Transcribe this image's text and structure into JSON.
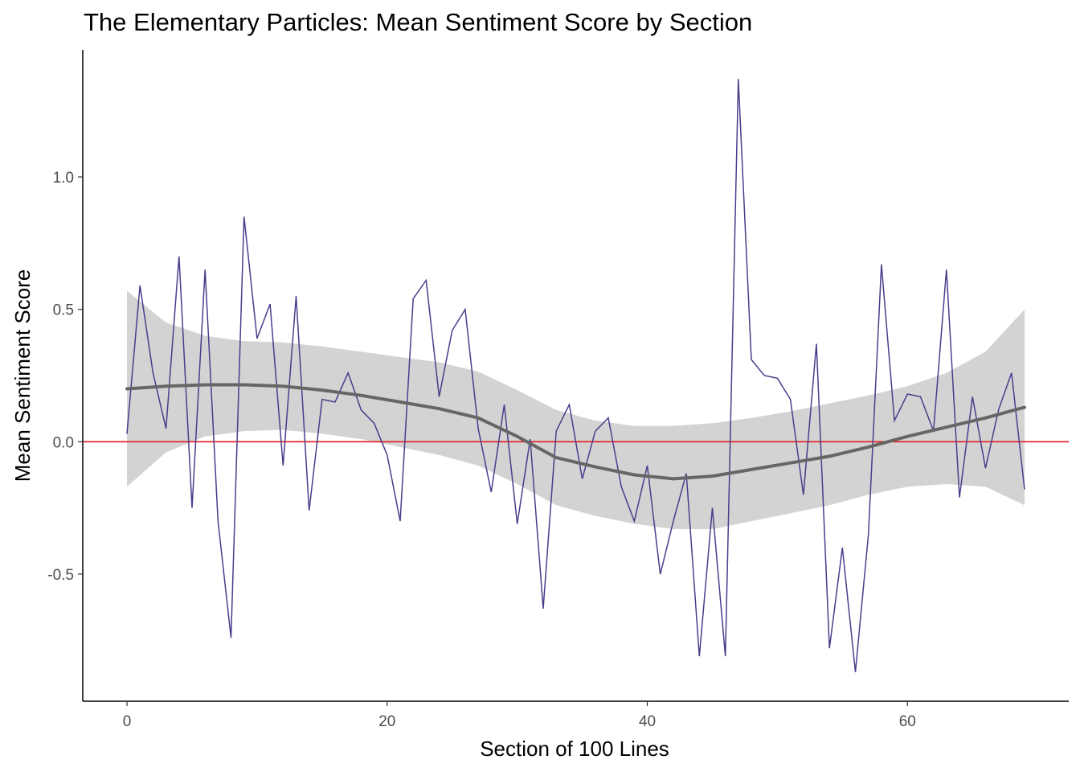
{
  "chart_data": {
    "type": "line",
    "title": "The Elementary Particles: Mean Sentiment Score by Section",
    "xlabel": "Section of 100 Lines",
    "ylabel": "Mean Sentiment Score",
    "xlim": [
      -3.4,
      72.4
    ],
    "ylim": [
      -0.98,
      1.48
    ],
    "x_ticks": [
      0,
      20,
      40,
      60
    ],
    "x_tick_labels": [
      "0",
      "20",
      "40",
      "60"
    ],
    "y_ticks": [
      -0.5,
      0.0,
      0.5,
      1.0
    ],
    "y_tick_labels": [
      "-0.5",
      "0.0",
      "0.5",
      "1.0"
    ],
    "grid": false,
    "legend": "none",
    "reference_line": {
      "y": 0,
      "color": "#e41a1c"
    },
    "series": [
      {
        "role": "raw",
        "color": "#483d8b",
        "x": [
          0,
          1,
          2,
          3,
          4,
          5,
          6,
          7,
          8,
          9,
          10,
          11,
          12,
          13,
          14,
          15,
          16,
          17,
          18,
          19,
          20,
          21,
          22,
          23,
          24,
          25,
          26,
          27,
          28,
          29,
          30,
          31,
          32,
          33,
          34,
          35,
          36,
          37,
          38,
          39,
          40,
          41,
          42,
          43,
          44,
          45,
          46,
          47,
          48,
          49,
          50,
          51,
          52,
          53,
          54,
          55,
          56,
          57,
          58,
          59,
          60,
          61,
          62,
          63,
          64,
          65,
          66,
          67,
          68,
          69
        ],
        "values": [
          0.03,
          0.59,
          0.26,
          0.05,
          0.7,
          -0.25,
          0.65,
          -0.3,
          -0.74,
          0.85,
          0.39,
          0.52,
          -0.09,
          0.55,
          -0.26,
          0.16,
          0.15,
          0.26,
          0.12,
          0.07,
          -0.05,
          -0.3,
          0.54,
          0.61,
          0.17,
          0.42,
          0.5,
          0.05,
          -0.19,
          0.14,
          -0.31,
          0.01,
          -0.63,
          0.04,
          0.14,
          -0.14,
          0.04,
          0.09,
          -0.17,
          -0.3,
          -0.09,
          -0.5,
          -0.3,
          -0.12,
          -0.81,
          -0.25,
          -0.81,
          1.37,
          0.31,
          0.25,
          0.24,
          0.16,
          -0.2,
          0.37,
          -0.78,
          -0.4,
          -0.87,
          -0.35,
          0.67,
          0.08,
          0.18,
          0.17,
          0.04,
          0.65,
          -0.21,
          0.17,
          -0.1,
          0.12,
          0.26,
          -0.18
        ]
      },
      {
        "role": "smooth",
        "color": "#666666",
        "x": [
          0,
          3,
          6,
          9,
          12,
          15,
          18,
          21,
          24,
          27,
          30,
          33,
          36,
          39,
          42,
          45,
          48,
          51,
          54,
          57,
          60,
          63,
          66,
          69
        ],
        "values": [
          0.2,
          0.21,
          0.215,
          0.215,
          0.21,
          0.195,
          0.175,
          0.15,
          0.125,
          0.09,
          0.02,
          -0.06,
          -0.095,
          -0.125,
          -0.14,
          -0.13,
          -0.105,
          -0.08,
          -0.055,
          -0.02,
          0.02,
          0.055,
          0.09,
          0.13
        ],
        "ci_upper": [
          0.57,
          0.45,
          0.4,
          0.38,
          0.375,
          0.36,
          0.34,
          0.32,
          0.3,
          0.265,
          0.195,
          0.12,
          0.08,
          0.06,
          0.06,
          0.07,
          0.09,
          0.115,
          0.145,
          0.175,
          0.21,
          0.26,
          0.34,
          0.5
        ],
        "ci_lower": [
          -0.17,
          -0.04,
          0.02,
          0.04,
          0.045,
          0.03,
          0.01,
          -0.02,
          -0.05,
          -0.09,
          -0.16,
          -0.24,
          -0.28,
          -0.31,
          -0.33,
          -0.33,
          -0.3,
          -0.27,
          -0.24,
          -0.2,
          -0.17,
          -0.16,
          -0.17,
          -0.24
        ],
        "ci_color": "#d3d3d3"
      }
    ]
  }
}
